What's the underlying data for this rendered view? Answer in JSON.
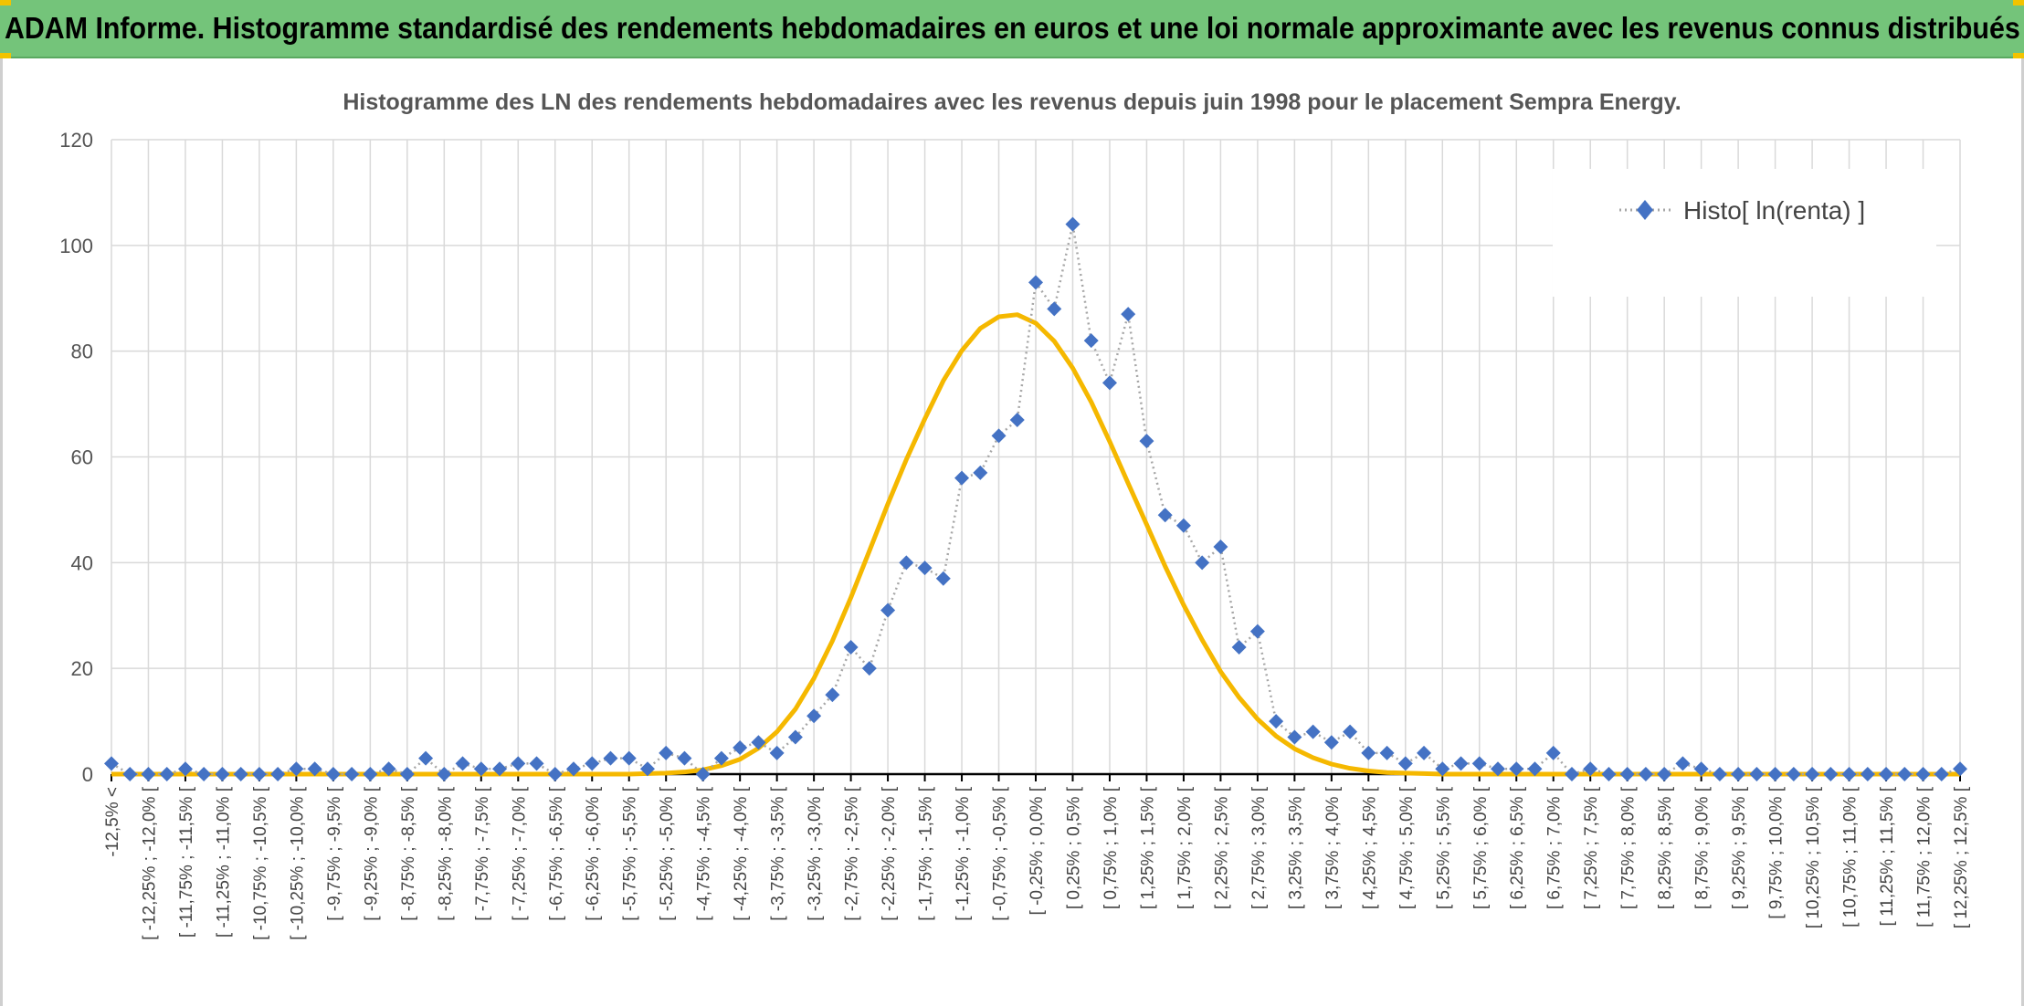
{
  "banner": {
    "title": "ADAM Informe. Histogramme standardisé des rendements hebdomadaires en euros et une loi normale approximante avec les revenus connus distribués"
  },
  "colors": {
    "banner_bg": "#74c47a",
    "accent": "#f2c300",
    "marker": "#4472c4",
    "dotted_line": "#a6a6a6",
    "normal_curve": "#f5b800",
    "grid": "#d9d9d9"
  },
  "chart_data": {
    "type": "scatter",
    "title": "Histogramme des LN des rendements hebdomadaires avec les revenus depuis juin 1998 pour le placement Sempra Energy.",
    "xlabel": "",
    "ylabel": "",
    "ylim": [
      0,
      120
    ],
    "yticks": [
      "0",
      "20",
      "40",
      "60",
      "80",
      "100",
      "120"
    ],
    "grid": true,
    "legend_position": "top-right",
    "categories": [
      "-12,5% <",
      "[ -12,25% ; -12,0% [",
      "[ -11,75% ; -11,5% [",
      "[ -11,25% ; -11,0% [",
      "[ -10,75% ; -10,5% [",
      "[ -10,25% ; -10,0% [",
      "[ -9,75% ; -9,5% [",
      "[ -9,25% ; -9,0% [",
      "[ -8,75% ; -8,5% [",
      "[ -8,25% ; -8,0% [",
      "[ -7,75% ; -7,5% [",
      "[ -7,25% ; -7,0% [",
      "[ -6,75% ; -6,5% [",
      "[ -6,25% ; -6,0% [",
      "[ -5,75% ; -5,5% [",
      "[ -5,25% ; -5,0% [",
      "[ -4,75% ; -4,5% [",
      "[ -4,25% ; -4,0% [",
      "[ -3,75% ; -3,5% [",
      "[ -3,25% ; -3,0% [",
      "[ -2,75% ; -2,5% [",
      "[ -2,25% ; -2,0% [",
      "[ -1,75% ; -1,5% [",
      "[ -1,25% ; -1,0% [",
      "[ -0,75% ; -0,5% [",
      "[ -0,25% ; 0,0% [",
      "[ 0,25% ; 0,5% [",
      "[ 0,75% ; 1,0% [",
      "[ 1,25% ; 1,5% [",
      "[ 1,75% ; 2,0% [",
      "[ 2,25% ; 2,5% [",
      "[ 2,75% ; 3,0% [",
      "[ 3,25% ; 3,5% [",
      "[ 3,75% ; 4,0% [",
      "[ 4,25% ; 4,5% [",
      "[ 4,75% ; 5,0% [",
      "[ 5,25% ; 5,5% [",
      "[ 5,75% ; 6,0% [",
      "[ 6,25% ; 6,5% [",
      "[ 6,75% ; 7,0% [",
      "[ 7,25% ; 7,5% [",
      "[ 7,75% ; 8,0% [",
      "[ 8,25% ; 8,5% [",
      "[ 8,75% ; 9,0% [",
      "[ 9,25% ; 9,5% [",
      "[ 9,75% ; 10,0% [",
      "[ 10,25% ; 10,5% [",
      "[ 10,75% ; 11,0% [",
      "[ 11,25% ; 11,5% [",
      "[ 11,75% ; 12,0% [",
      "[ 12,25% ; 12,5% ["
    ],
    "x": [
      -12.5,
      -12.25,
      -12,
      -11.75,
      -11.5,
      -11.25,
      -11,
      -10.75,
      -10.5,
      -10.25,
      -10,
      -9.75,
      -9.5,
      -9.25,
      -9,
      -8.75,
      -8.5,
      -8.25,
      -8,
      -7.75,
      -7.5,
      -7.25,
      -7,
      -6.75,
      -6.5,
      -6.25,
      -6,
      -5.75,
      -5.5,
      -5.25,
      -5,
      -4.75,
      -4.5,
      -4.25,
      -4,
      -3.75,
      -3.5,
      -3.25,
      -3,
      -2.75,
      -2.5,
      -2.25,
      -2,
      -1.75,
      -1.5,
      -1.25,
      -1,
      -0.75,
      -0.5,
      -0.25,
      0,
      0.25,
      0.5,
      0.75,
      1,
      1.25,
      1.5,
      1.75,
      2,
      2.25,
      2.5,
      2.75,
      3,
      3.25,
      3.5,
      3.75,
      4,
      4.25,
      4.5,
      4.75,
      5,
      5.25,
      5.5,
      5.75,
      6,
      6.25,
      6.5,
      6.75,
      7,
      7.25,
      7.5,
      7.75,
      8,
      8.25,
      8.5,
      8.75,
      9,
      9.25,
      9.5,
      9.75,
      10,
      10.25,
      10.5,
      10.75,
      11,
      11.25,
      11.5,
      11.75,
      12,
      12.25,
      12.5
    ],
    "series": [
      {
        "name": "Histo[ ln(renta) ]",
        "style": "markers-dotted",
        "values": [
          2,
          0,
          0,
          0,
          1,
          0,
          0,
          0,
          0,
          0,
          1,
          1,
          0,
          0,
          0,
          1,
          0,
          3,
          0,
          2,
          1,
          1,
          2,
          2,
          0,
          1,
          2,
          3,
          3,
          1,
          4,
          3,
          0,
          3,
          5,
          6,
          4,
          7,
          11,
          15,
          24,
          20,
          31,
          40,
          39,
          37,
          56,
          57,
          64,
          67,
          93,
          88,
          104,
          82,
          74,
          87,
          63,
          49,
          47,
          40,
          43,
          24,
          27,
          10,
          7,
          8,
          6,
          8,
          4,
          4,
          2,
          4,
          1,
          2,
          2,
          1,
          1,
          1,
          4,
          0,
          1,
          0,
          0,
          0,
          0,
          2,
          1,
          0,
          0,
          0,
          0,
          0,
          0,
          0,
          0,
          0,
          0,
          0,
          0,
          0,
          1
        ]
      },
      {
        "name": "",
        "style": "line",
        "values": [
          0,
          0,
          0,
          0,
          0,
          0,
          0,
          0,
          0,
          0,
          0,
          0,
          0,
          0,
          0,
          0,
          0,
          0,
          0,
          0,
          0,
          0,
          0,
          0,
          0,
          0,
          0,
          0,
          0,
          0.1,
          0.2,
          0.4,
          0.8,
          1.6,
          2.8,
          4.9,
          8.0,
          12.3,
          18.1,
          25.2,
          33.4,
          42.2,
          51.1,
          59.5,
          67.2,
          74.4,
          80.1,
          84.3,
          86.5,
          86.9,
          85.3,
          81.9,
          76.8,
          70.4,
          62.9,
          55.0,
          47.2,
          39.3,
          32.0,
          25.4,
          19.4,
          14.5,
          10.4,
          7.2,
          4.8,
          3.1,
          1.9,
          1.1,
          0.6,
          0.3,
          0.2,
          0.1,
          0,
          0,
          0,
          0,
          0,
          0,
          0,
          0,
          0,
          0,
          0,
          0,
          0,
          0,
          0,
          0,
          0,
          0,
          0,
          0,
          0,
          0,
          0,
          0,
          0,
          0,
          0,
          0,
          0
        ]
      }
    ]
  }
}
